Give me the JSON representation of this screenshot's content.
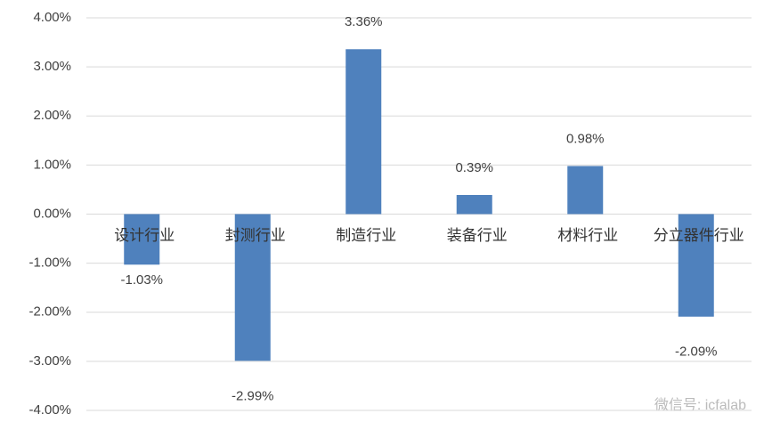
{
  "chart_data": {
    "type": "bar",
    "categories": [
      "设计行业",
      "封测行业",
      "制造行业",
      "装备行业",
      "材料行业",
      "分立器件行业"
    ],
    "values": [
      -1.03,
      -2.99,
      3.36,
      0.39,
      0.98,
      -2.09
    ],
    "value_labels": [
      "-1.03%",
      "-2.99%",
      "3.36%",
      "0.39%",
      "0.98%",
      "-2.09%"
    ],
    "color": "#4f81bd",
    "ylim": [
      -4,
      4
    ],
    "yticks": [
      {
        "value": -4,
        "label": "-4.00%"
      },
      {
        "value": -3,
        "label": "-3.00%"
      },
      {
        "value": -2,
        "label": "-2.00%"
      },
      {
        "value": -1,
        "label": "-1.00%"
      },
      {
        "value": 0,
        "label": "0.00%"
      },
      {
        "value": 1,
        "label": "1.00%"
      },
      {
        "value": 2,
        "label": "2.00%"
      },
      {
        "value": 3,
        "label": "3.00%"
      },
      {
        "value": 4,
        "label": "4.00%"
      }
    ],
    "grid": true,
    "watermark": "微信号: icfalab"
  }
}
